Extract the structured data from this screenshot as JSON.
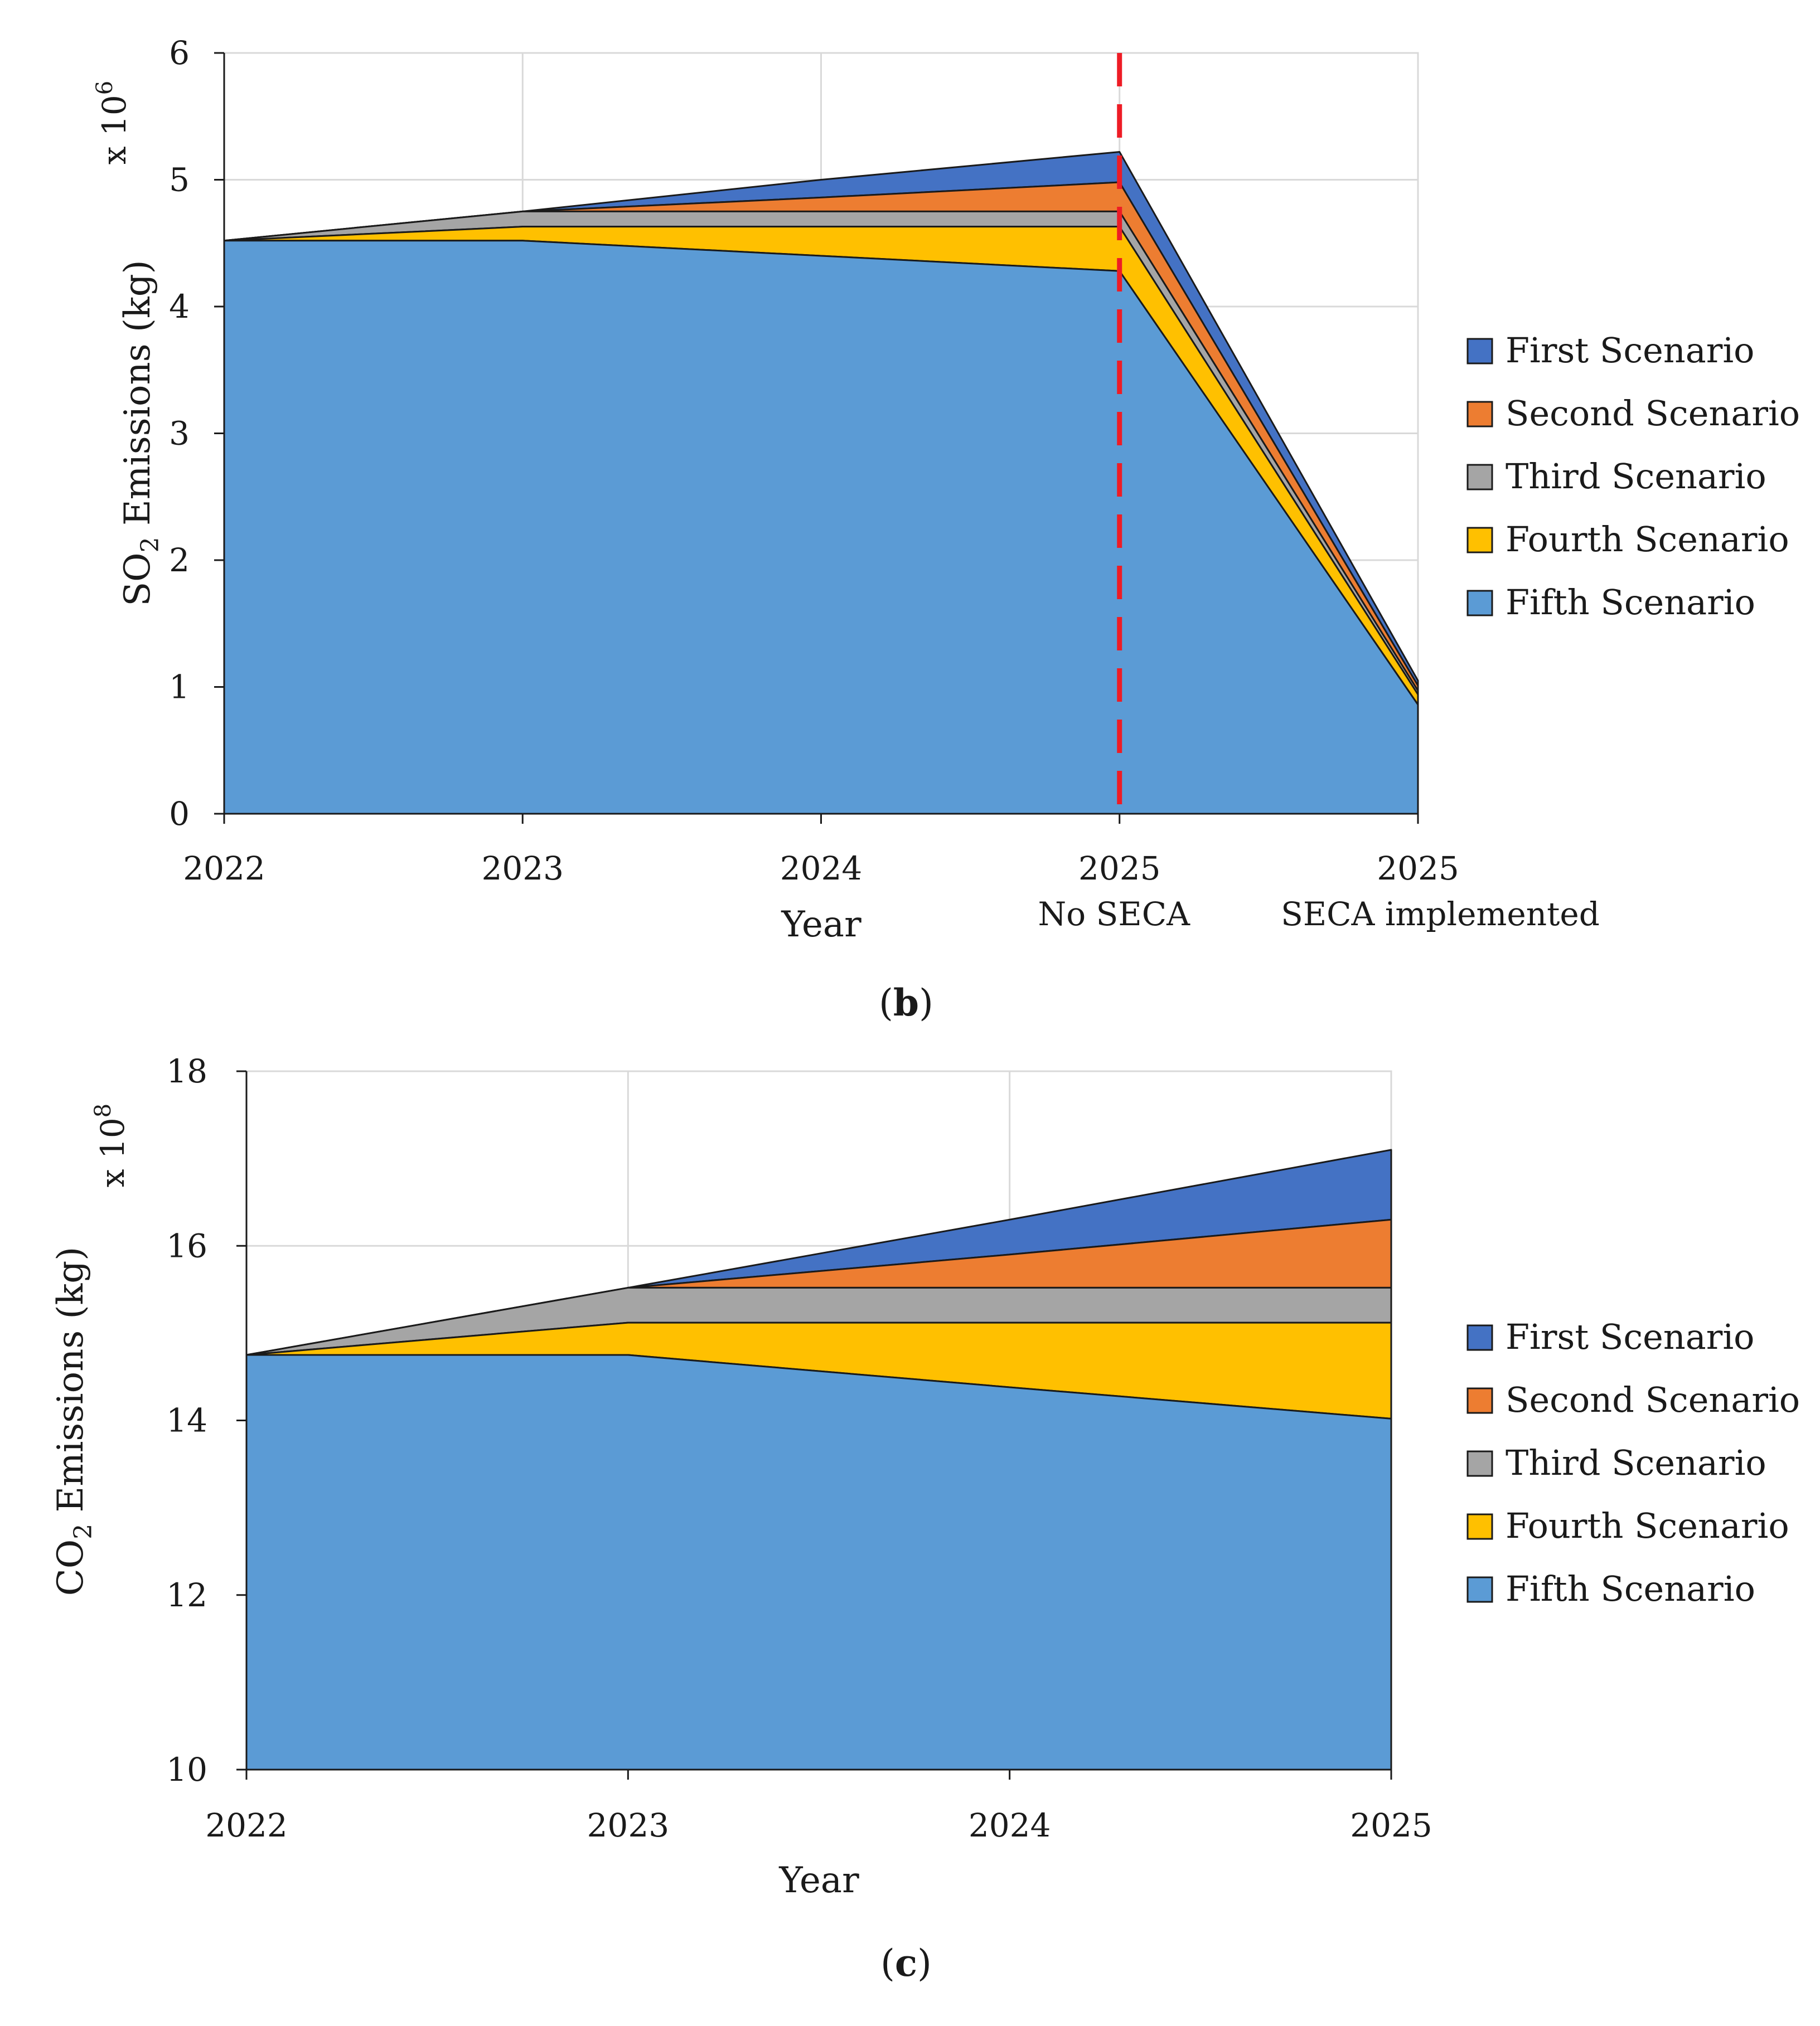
{
  "chart_data": [
    {
      "panel_label": "b",
      "type": "area",
      "stacked": true,
      "title": "",
      "xlabel": "Year",
      "ylabel": {
        "main": "SO",
        "subscript": "2",
        "rest": " Emissions (kg)"
      },
      "y_multiplier": {
        "base": "x 10",
        "exponent": "6"
      },
      "categories": [
        {
          "line1": "2022",
          "line2": ""
        },
        {
          "line1": "2023",
          "line2": ""
        },
        {
          "line1": "2024",
          "line2": ""
        },
        {
          "line1": "2025",
          "line2": "No SECA"
        },
        {
          "line1": "2025",
          "line2": "SECA implemented"
        }
      ],
      "ylim": [
        0,
        6
      ],
      "yticks": [
        "0",
        "1",
        "2",
        "3",
        "4",
        "5",
        "6"
      ],
      "grid": true,
      "legend_position": "right",
      "annotation": {
        "type": "vertical-dashed-line",
        "at_category_index": 3,
        "color": "#ee1c25"
      },
      "series": [
        {
          "name": "First Scenario",
          "color": "#4472c4",
          "totals": [
            4.52,
            4.75,
            5.0,
            5.22,
            1.05
          ]
        },
        {
          "name": "Second Scenario",
          "color": "#ed7d31",
          "totals": [
            4.52,
            4.75,
            4.86,
            4.98,
            1.01
          ]
        },
        {
          "name": "Third Scenario",
          "color": "#a5a5a5",
          "totals": [
            4.52,
            4.75,
            4.75,
            4.75,
            0.97
          ]
        },
        {
          "name": "Fourth Scenario",
          "color": "#ffc000",
          "totals": [
            4.52,
            4.63,
            4.63,
            4.63,
            0.94
          ]
        },
        {
          "name": "Fifth Scenario",
          "color": "#5b9bd5",
          "totals": [
            4.52,
            4.52,
            4.4,
            4.28,
            0.86
          ]
        }
      ]
    },
    {
      "panel_label": "c",
      "type": "area",
      "stacked": true,
      "title": "",
      "xlabel": "Year",
      "ylabel": {
        "main": "CO",
        "subscript": "2",
        "rest": " Emissions (kg)"
      },
      "y_multiplier": {
        "base": "x 10",
        "exponent": "8"
      },
      "categories": [
        {
          "line1": "2022",
          "line2": ""
        },
        {
          "line1": "2023",
          "line2": ""
        },
        {
          "line1": "2024",
          "line2": ""
        },
        {
          "line1": "2025",
          "line2": ""
        }
      ],
      "ylim": [
        10,
        18
      ],
      "yticks": [
        "10",
        "12",
        "14",
        "16",
        "18"
      ],
      "grid": true,
      "legend_position": "right",
      "series": [
        {
          "name": "First Scenario",
          "color": "#4472c4",
          "totals": [
            14.75,
            15.52,
            16.3,
            17.1
          ]
        },
        {
          "name": "Second Scenario",
          "color": "#ed7d31",
          "totals": [
            14.75,
            15.52,
            15.9,
            16.3
          ]
        },
        {
          "name": "Third Scenario",
          "color": "#a5a5a5",
          "totals": [
            14.75,
            15.52,
            15.52,
            15.52
          ]
        },
        {
          "name": "Fourth Scenario",
          "color": "#ffc000",
          "totals": [
            14.75,
            15.12,
            15.12,
            15.12
          ]
        },
        {
          "name": "Fifth Scenario",
          "color": "#5b9bd5",
          "totals": [
            14.75,
            14.75,
            14.38,
            14.02
          ]
        }
      ]
    }
  ]
}
